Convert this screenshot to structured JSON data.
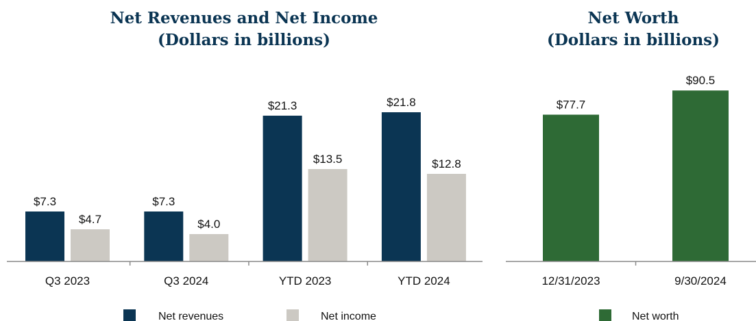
{
  "chart_data": [
    {
      "type": "bar",
      "title": "Net Revenues and Net Income",
      "subtitle": "(Dollars in billions)",
      "categories": [
        "Q3 2023",
        "Q3 2024",
        "YTD 2023",
        "YTD 2024"
      ],
      "series": [
        {
          "name": "Net revenues",
          "values": [
            7.3,
            7.3,
            21.3,
            21.8
          ],
          "labels": [
            "$7.3",
            "$7.3",
            "$21.3",
            "$21.8"
          ],
          "color": "#0b3553"
        },
        {
          "name": "Net income",
          "values": [
            4.7,
            4.0,
            13.5,
            12.8
          ],
          "labels": [
            "$4.7",
            "$4.0",
            "$13.5",
            "$12.8"
          ],
          "color": "#ccc9c3"
        }
      ],
      "ylim": [
        0,
        25
      ],
      "grid": false,
      "legend": "bottom"
    },
    {
      "type": "bar",
      "title": "Net Worth",
      "subtitle": "(Dollars in billions)",
      "categories": [
        "12/31/2023",
        "9/30/2024"
      ],
      "series": [
        {
          "name": "Net worth",
          "values": [
            77.7,
            90.5
          ],
          "labels": [
            "$77.7",
            "$90.5"
          ],
          "color": "#2e6a35"
        }
      ],
      "ylim": [
        0,
        100
      ],
      "grid": false,
      "legend": "bottom"
    }
  ]
}
